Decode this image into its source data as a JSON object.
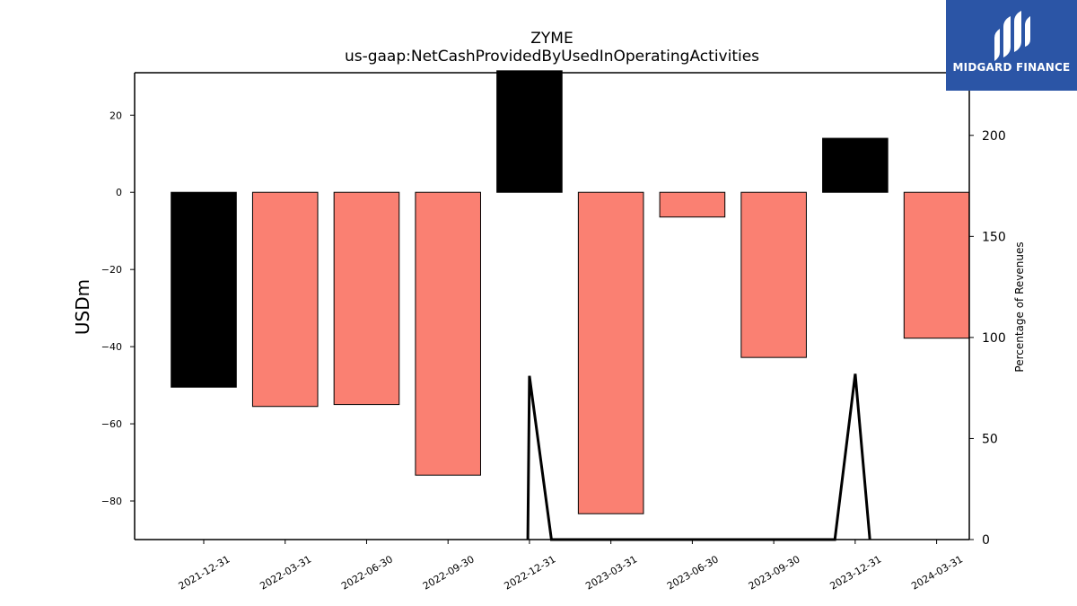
{
  "brand": {
    "name": "MIDGARD FINANCE",
    "background": "#2b55a6"
  },
  "chart_data": {
    "type": "bar",
    "title": "ZYME",
    "subtitle": "us-gaap:NetCashProvidedByUsedInOperatingActivities",
    "ylabel": "USDm",
    "y2label": "Percentage of Revenues",
    "categories": [
      "2021-12-31",
      "2022-03-31",
      "2022-06-30",
      "2022-09-30",
      "2022-12-31",
      "2023-03-31",
      "2023-06-30",
      "2023-09-30",
      "2023-12-31",
      "2024-03-31"
    ],
    "values": [
      -50.5,
      -55.5,
      -55.0,
      -73.3,
      31.5,
      -83.3,
      -6.4,
      -42.8,
      14.0,
      -37.8
    ],
    "bar_colors": [
      "#000000",
      "#fa8072",
      "#fa8072",
      "#fa8072",
      "#000000",
      "#fa8072",
      "#fa8072",
      "#fa8072",
      "#000000",
      "#fa8072"
    ],
    "ylim": [
      -90,
      31
    ],
    "yticks": [
      20,
      0,
      -20,
      -40,
      -60,
      -80
    ],
    "y2lim": [
      0,
      231
    ],
    "y2ticks": [
      200,
      150,
      100,
      50,
      0
    ],
    "secondary_line": {
      "color": "#000000",
      "points": [
        {
          "x": "2022-12-31",
          "offset": -0.02,
          "y": 0
        },
        {
          "x": "2022-12-31",
          "offset": 0.0,
          "y": 81
        },
        {
          "x": "2022-12-31",
          "offset": 0.27,
          "y": 0
        },
        {
          "x": "2023-12-31",
          "offset": -0.25,
          "y": 0
        },
        {
          "x": "2023-12-31",
          "offset": 0.0,
          "y": 82
        },
        {
          "x": "2023-12-31",
          "offset": 0.18,
          "y": 0
        }
      ]
    },
    "grid": false,
    "legend": "none"
  }
}
